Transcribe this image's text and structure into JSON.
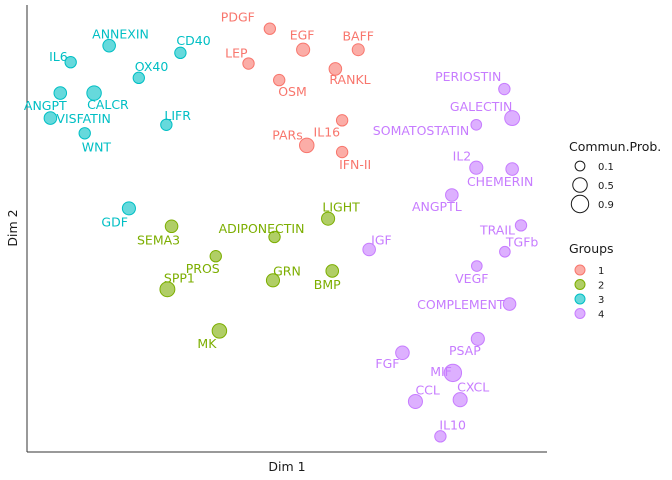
{
  "chart_data": {
    "type": "scatter",
    "xlabel": "Dim 1",
    "ylabel": "Dim 2",
    "xlim": [
      0,
      100
    ],
    "ylim": [
      0,
      100
    ],
    "grid": false,
    "group_colors": {
      "1": "#F8766D",
      "2": "#7CAE00",
      "3": "#00BFC4",
      "4": "#C77CFF"
    },
    "size_legend": {
      "title": "Commun.Prob.",
      "values": [
        "0.1",
        "0.5",
        "0.9"
      ]
    },
    "group_legend": {
      "title": "Groups",
      "values": [
        "1",
        "2",
        "3",
        "4"
      ]
    },
    "points": [
      {
        "name": "PDGF",
        "x": 46.7,
        "y": 94.7,
        "group": "1",
        "prob": 0.2
      },
      {
        "name": "EGF",
        "x": 53.1,
        "y": 90.0,
        "group": "1",
        "prob": 0.35
      },
      {
        "name": "BAFF",
        "x": 63.7,
        "y": 90.0,
        "group": "1",
        "prob": 0.25
      },
      {
        "name": "LEP",
        "x": 42.6,
        "y": 86.9,
        "group": "1",
        "prob": 0.2
      },
      {
        "name": "RANKL",
        "x": 59.3,
        "y": 85.7,
        "group": "1",
        "prob": 0.3
      },
      {
        "name": "OSM",
        "x": 48.5,
        "y": 83.2,
        "group": "1",
        "prob": 0.2
      },
      {
        "name": "IL16",
        "x": 60.6,
        "y": 74.2,
        "group": "1",
        "prob": 0.2
      },
      {
        "name": "PARs",
        "x": 53.8,
        "y": 68.6,
        "group": "1",
        "prob": 0.5
      },
      {
        "name": "IFN-II",
        "x": 60.6,
        "y": 67.1,
        "group": "1",
        "prob": 0.2
      },
      {
        "name": "ANNEXIN",
        "x": 15.8,
        "y": 90.9,
        "group": "3",
        "prob": 0.3
      },
      {
        "name": "CD40",
        "x": 29.5,
        "y": 89.3,
        "group": "3",
        "prob": 0.2
      },
      {
        "name": "IL6",
        "x": 8.4,
        "y": 87.2,
        "group": "3",
        "prob": 0.2
      },
      {
        "name": "OX40",
        "x": 21.5,
        "y": 83.7,
        "group": "3",
        "prob": 0.2
      },
      {
        "name": "ANGPT",
        "x": 6.4,
        "y": 80.3,
        "group": "3",
        "prob": 0.3
      },
      {
        "name": "CALCR",
        "x": 12.9,
        "y": 80.3,
        "group": "3",
        "prob": 0.5
      },
      {
        "name": "VISFATIN",
        "x": 4.5,
        "y": 74.7,
        "group": "3",
        "prob": 0.3
      },
      {
        "name": "LIFR",
        "x": 26.8,
        "y": 73.2,
        "group": "3",
        "prob": 0.2
      },
      {
        "name": "WNT",
        "x": 11.1,
        "y": 71.3,
        "group": "3",
        "prob": 0.2
      },
      {
        "name": "GDF",
        "x": 19.6,
        "y": 54.5,
        "group": "3",
        "prob": 0.35
      },
      {
        "name": "PERIOSTIN",
        "x": 91.8,
        "y": 81.2,
        "group": "4",
        "prob": 0.2
      },
      {
        "name": "GALECTIN",
        "x": 93.3,
        "y": 74.7,
        "group": "4",
        "prob": 0.55
      },
      {
        "name": "SOMATOSTATIN",
        "x": 86.4,
        "y": 73.2,
        "group": "4",
        "prob": 0.15
      },
      {
        "name": "IL2",
        "x": 86.4,
        "y": 63.6,
        "group": "4",
        "prob": 0.35
      },
      {
        "name": "CHEMERIN",
        "x": 93.3,
        "y": 63.3,
        "group": "4",
        "prob": 0.3
      },
      {
        "name": "ANGPTL",
        "x": 81.7,
        "y": 57.5,
        "group": "4",
        "prob": 0.3
      },
      {
        "name": "TRAIL",
        "x": 95.0,
        "y": 50.7,
        "group": "4",
        "prob": 0.2
      },
      {
        "name": "TGFb",
        "x": 91.9,
        "y": 44.8,
        "group": "4",
        "prob": 0.15
      },
      {
        "name": "IGF",
        "x": 65.8,
        "y": 45.3,
        "group": "4",
        "prob": 0.3
      },
      {
        "name": "VEGF",
        "x": 86.5,
        "y": 41.6,
        "group": "4",
        "prob": 0.15
      },
      {
        "name": "COMPLEMENT",
        "x": 92.8,
        "y": 33.1,
        "group": "4",
        "prob": 0.3
      },
      {
        "name": "PSAP",
        "x": 86.7,
        "y": 25.3,
        "group": "4",
        "prob": 0.35
      },
      {
        "name": "FGF",
        "x": 72.2,
        "y": 22.2,
        "group": "4",
        "prob": 0.4
      },
      {
        "name": "MIF",
        "x": 81.9,
        "y": 17.7,
        "group": "4",
        "prob": 0.9
      },
      {
        "name": "CCL",
        "x": 74.7,
        "y": 11.3,
        "group": "4",
        "prob": 0.45
      },
      {
        "name": "CXCL",
        "x": 83.3,
        "y": 11.7,
        "group": "4",
        "prob": 0.45
      },
      {
        "name": "IL10",
        "x": 79.5,
        "y": 3.5,
        "group": "4",
        "prob": 0.2
      },
      {
        "name": "LIGHT",
        "x": 57.9,
        "y": 52.2,
        "group": "2",
        "prob": 0.35
      },
      {
        "name": "SEMA3",
        "x": 27.8,
        "y": 50.5,
        "group": "2",
        "prob": 0.3
      },
      {
        "name": "ADIPONECTIN",
        "x": 47.6,
        "y": 48.1,
        "group": "2",
        "prob": 0.2
      },
      {
        "name": "PROS",
        "x": 36.3,
        "y": 43.8,
        "group": "2",
        "prob": 0.2
      },
      {
        "name": "GRN",
        "x": 47.3,
        "y": 38.4,
        "group": "2",
        "prob": 0.35
      },
      {
        "name": "BMP",
        "x": 58.7,
        "y": 40.5,
        "group": "2",
        "prob": 0.3
      },
      {
        "name": "SPP1",
        "x": 27.0,
        "y": 36.4,
        "group": "2",
        "prob": 0.55
      },
      {
        "name": "MK",
        "x": 37.0,
        "y": 27.1,
        "group": "2",
        "prob": 0.5
      }
    ]
  }
}
